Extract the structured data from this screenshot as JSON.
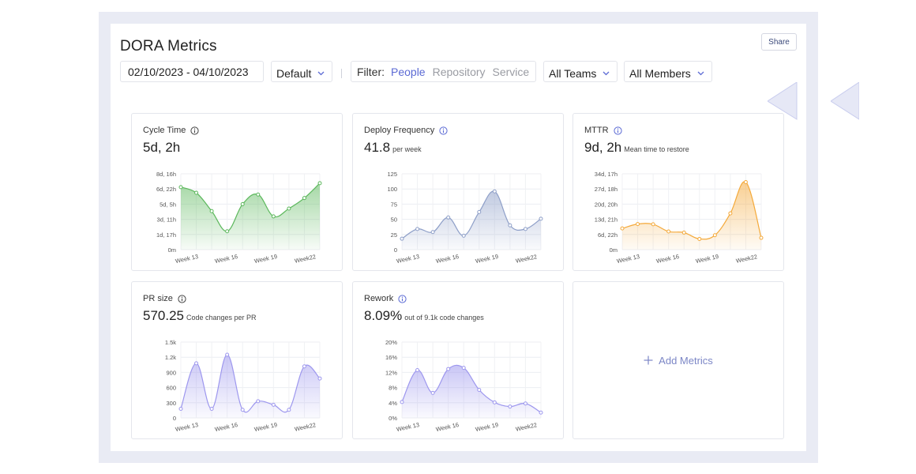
{
  "header": {
    "title": "DORA Metrics",
    "share_label": "Share"
  },
  "toolbar": {
    "date_range": "02/10/2023 - 04/10/2023",
    "view_select": "Default",
    "filter_label": "Filter:",
    "filter_options": [
      "People",
      "Repository",
      "Service"
    ],
    "filter_active": "People",
    "teams_select": "All Teams",
    "members_select": "All Members"
  },
  "add_metrics_label": "Add Metrics",
  "colors": {
    "green": "#5cb85c",
    "blue": "#8e9fc8",
    "orange": "#f4a93a",
    "purple": "#9d97ee",
    "accent": "#5b6ad4"
  },
  "chart_data": [
    {
      "type": "area",
      "title": "Cycle Time",
      "value": "5d, 2h",
      "unit_text": "",
      "color": "#5cb85c",
      "y_ticks": [
        "0m",
        "1d, 17h",
        "3d, 11h",
        "5d, 5h",
        "6d, 22h",
        "8d, 16h"
      ],
      "x_labels": [
        "Week 13",
        "Week 16",
        "Week 19",
        "Week22"
      ],
      "values": [
        7.15,
        6.5,
        4.4,
        2.1,
        5.2,
        6.3,
        3.8,
        4.7,
        5.9,
        7.6
      ],
      "ymax": 8.67
    },
    {
      "type": "area",
      "title": "Deploy Frequency",
      "value": "41.8",
      "unit_text": "per week",
      "color": "#8e9fc8",
      "y_ticks": [
        "0",
        "25",
        "50",
        "75",
        "100",
        "125"
      ],
      "x_labels": [
        "Week 13",
        "Week 16",
        "Week 19",
        "Week22"
      ],
      "values": [
        18,
        34,
        29,
        53,
        23,
        62,
        96,
        40,
        34,
        51
      ],
      "ymax": 125
    },
    {
      "type": "area",
      "title": "MTTR",
      "value": "9d, 2h",
      "unit_text": "Mean time to restore",
      "color": "#f4a93a",
      "y_ticks": [
        "0m",
        "6d, 22h",
        "13d, 21h",
        "20d, 20h",
        "27d, 18h",
        "34d, 17h"
      ],
      "x_labels": [
        "Week 13",
        "Week 16",
        "Week 19",
        "Week22"
      ],
      "values": [
        9.7,
        11.7,
        11.6,
        8.3,
        7.8,
        4.9,
        6.6,
        16.6,
        30.9,
        5.4
      ],
      "ymax": 34.7
    },
    {
      "type": "area",
      "title": "PR size",
      "value": "570.25",
      "unit_text": "Code changes per PR",
      "color": "#9d97ee",
      "y_ticks": [
        "0",
        "300",
        "600",
        "900",
        "1.2k",
        "1.5k"
      ],
      "x_labels": [
        "Week 13",
        "Week 16",
        "Week 19",
        "Week22"
      ],
      "values": [
        180,
        1080,
        180,
        1250,
        160,
        330,
        260,
        160,
        1020,
        780
      ],
      "ymax": 1500
    },
    {
      "type": "area",
      "title": "Rework",
      "value": "8.09%",
      "unit_text": "out of 9.1k code changes",
      "color": "#9d97ee",
      "y_ticks": [
        "0%",
        "4%",
        "8%",
        "12%",
        "16%",
        "20%"
      ],
      "x_labels": [
        "Week 13",
        "Week 16",
        "Week 19",
        "Week22"
      ],
      "values": [
        4.2,
        12.6,
        6.6,
        12.9,
        13.2,
        7.4,
        4.1,
        3.0,
        3.8,
        1.4
      ],
      "ymax": 20
    }
  ]
}
